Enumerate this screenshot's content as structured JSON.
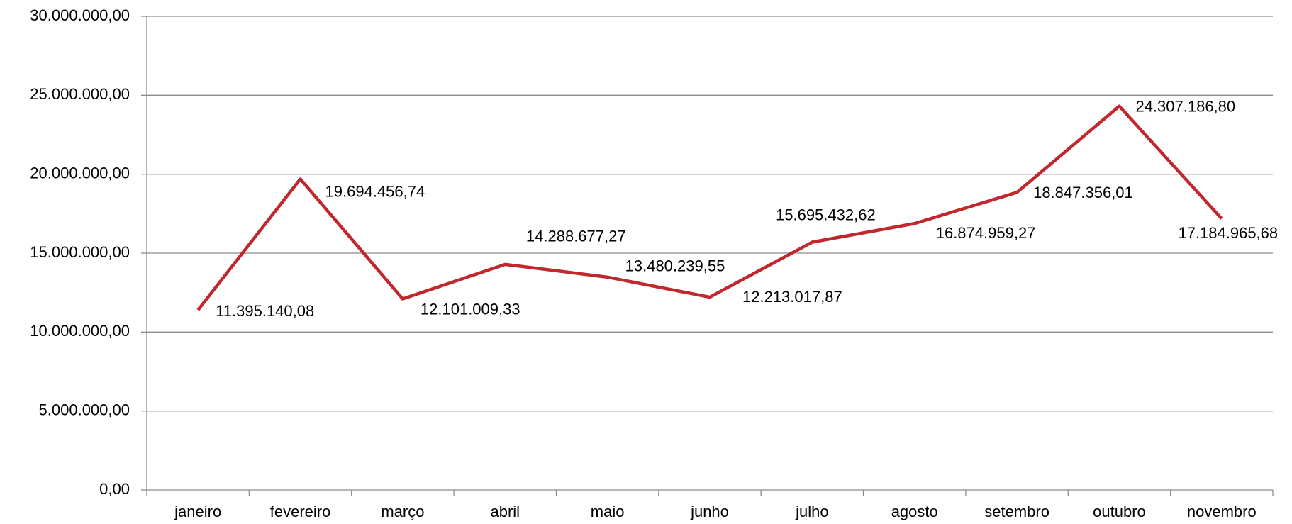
{
  "chart_data": {
    "type": "line",
    "categories": [
      "janeiro",
      "fevereiro",
      "março",
      "abril",
      "maio",
      "junho",
      "julho",
      "agosto",
      "setembro",
      "outubro",
      "novembro"
    ],
    "series": [
      {
        "color": "#c0282e",
        "values": [
          11395140.08,
          19694456.74,
          12101009.33,
          14288677.27,
          13480239.55,
          12213017.87,
          15695432.62,
          16874959.27,
          18847356.01,
          24307186.8,
          17184965.68
        ],
        "value_labels": [
          "11.395.140,08",
          "19.694.456,74",
          "12.101.009,33",
          "14.288.677,27",
          "13.480.239,55",
          "12.213.017,87",
          "15.695.432,62",
          "16.874.959,27",
          "18.847.356,01",
          "24.307.186,80",
          "17.184.965,68"
        ]
      }
    ],
    "ylim": [
      0,
      30000000
    ],
    "yticks": [
      {
        "value": 0,
        "label": "0,00"
      },
      {
        "value": 5000000,
        "label": "5.000.000,00"
      },
      {
        "value": 10000000,
        "label": "10.000.000,00"
      },
      {
        "value": 15000000,
        "label": "15.000.000,00"
      },
      {
        "value": 20000000,
        "label": "20.000.000,00"
      },
      {
        "value": 25000000,
        "label": "25.000.000,00"
      },
      {
        "value": 30000000,
        "label": "30.000.000,00"
      }
    ],
    "grid": true
  }
}
